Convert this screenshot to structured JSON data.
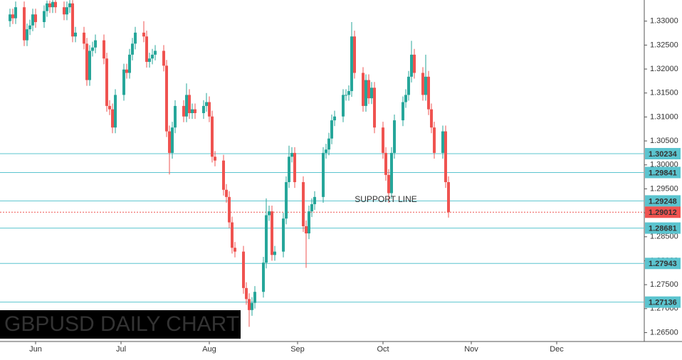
{
  "chart_data": {
    "type": "candlestick",
    "title": "GBPUSD DAILY CHART",
    "annotation": "SUPPORT LINE",
    "x": [
      -9,
      -8,
      -7,
      -4,
      -3,
      -2,
      -1,
      0,
      3,
      4,
      5,
      6,
      7,
      10,
      11,
      12,
      13,
      14,
      17,
      18,
      19,
      20,
      21,
      24,
      25,
      26,
      27,
      28,
      31,
      32,
      33,
      34,
      35,
      38,
      39,
      40,
      41,
      42,
      45,
      46,
      47,
      48,
      49,
      52,
      53,
      54,
      55,
      56,
      59,
      60,
      61,
      62,
      63,
      66,
      67,
      68,
      69,
      70,
      73,
      74,
      75,
      76,
      77,
      80,
      81,
      82,
      83,
      84,
      87,
      88,
      89,
      90,
      91,
      94,
      95,
      96,
      97,
      98,
      101,
      102,
      103,
      104,
      105,
      108,
      109,
      110,
      111,
      112,
      115,
      116,
      117,
      118,
      119,
      122,
      123,
      124,
      125,
      126,
      129,
      130,
      131,
      132,
      133,
      136,
      137,
      138,
      139,
      140,
      143,
      144,
      145
    ],
    "open": [
      1.33,
      1.3314,
      1.3306,
      1.3329,
      1.326,
      1.3283,
      1.3291,
      1.3314,
      1.3298,
      1.3321,
      1.3337,
      1.3329,
      1.334,
      1.3329,
      1.3314,
      1.3329,
      1.3337,
      1.3268,
      1.3276,
      1.3253,
      1.3177,
      1.3238,
      1.3245,
      1.326,
      1.3222,
      1.3123,
      1.3116,
      1.3078,
      1.3146,
      1.3199,
      1.3192,
      1.323,
      1.3253,
      1.3276,
      1.3268,
      1.3215,
      1.3222,
      1.323,
      1.3238,
      1.3207,
      1.307,
      1.3025,
      1.3078,
      1.3123,
      1.3101,
      1.3146,
      1.3108,
      1.3116,
      1.3108,
      1.3123,
      1.3131,
      1.3101,
      1.3017,
      1.3009,
      1.2948,
      1.2933,
      1.288,
      1.2827,
      1.2819,
      1.2743,
      1.272,
      1.2697,
      1.2712,
      1.2735,
      1.2796,
      1.2895,
      1.2903,
      1.2812,
      1.2819,
      1.2888,
      1.2964,
      1.3017,
      1.3025,
      1.2964,
      1.2872,
      1.2857,
      1.2903,
      1.2918,
      1.2933,
      1.3025,
      1.3032,
      1.3055,
      1.3093,
      1.3101,
      1.3146,
      1.3146,
      1.3154,
      1.3268,
      1.3192,
      1.3123,
      1.3177,
      1.3139,
      1.3161,
      1.3078,
      1.3025,
      1.2979,
      1.2941,
      1.3025,
      1.3093,
      1.3131,
      1.3146,
      1.3184,
      1.323,
      1.3192,
      1.3146,
      1.3184,
      1.3116,
      1.3078,
      1.3025,
      1.307,
      1.2964
    ],
    "high": [
      1.3326,
      1.3326,
      1.3341,
      1.3341,
      1.3295,
      1.3303,
      1.3326,
      1.3326,
      1.3333,
      1.3343,
      1.3343,
      1.3344,
      1.3344,
      1.3341,
      1.3341,
      1.3344,
      1.3344,
      1.3288,
      1.3288,
      1.3265,
      1.325,
      1.3257,
      1.3272,
      1.3272,
      1.3234,
      1.3135,
      1.3128,
      1.3158,
      1.3211,
      1.3211,
      1.3242,
      1.3265,
      1.3288,
      1.33,
      1.328,
      1.3234,
      1.3242,
      1.325,
      1.325,
      1.3219,
      1.3082,
      1.309,
      1.3135,
      1.3135,
      1.317,
      1.3158,
      1.3128,
      1.3128,
      1.3135,
      1.315,
      1.3143,
      1.3113,
      1.3029,
      1.3021,
      1.296,
      1.2945,
      1.2892,
      1.2839,
      1.2831,
      1.2755,
      1.2732,
      1.2724,
      1.2747,
      1.2808,
      1.293,
      1.2915,
      1.2915,
      1.2831,
      1.29,
      1.2976,
      1.304,
      1.3037,
      1.3037,
      1.2976,
      1.2884,
      1.2915,
      1.293,
      1.2945,
      1.3037,
      1.3044,
      1.3067,
      1.3105,
      1.3113,
      1.3158,
      1.3158,
      1.3166,
      1.3298,
      1.328,
      1.3204,
      1.3189,
      1.3189,
      1.3173,
      1.3173,
      1.309,
      1.3037,
      1.2991,
      1.3037,
      1.3105,
      1.3143,
      1.3158,
      1.3196,
      1.3259,
      1.3242,
      1.3204,
      1.323,
      1.3196,
      1.3128,
      1.309,
      1.3082,
      1.3082,
      1.2976
    ],
    "low": [
      1.3288,
      1.3294,
      1.3294,
      1.3248,
      1.3248,
      1.3271,
      1.3279,
      1.3286,
      1.3286,
      1.3309,
      1.3317,
      1.3317,
      1.3317,
      1.3302,
      1.3302,
      1.3317,
      1.3256,
      1.3256,
      1.3241,
      1.3165,
      1.3165,
      1.3226,
      1.3233,
      1.321,
      1.3111,
      1.3104,
      1.3066,
      1.3066,
      1.3134,
      1.318,
      1.318,
      1.3218,
      1.3241,
      1.3256,
      1.3203,
      1.3203,
      1.321,
      1.3218,
      1.3195,
      1.3058,
      1.298,
      1.3013,
      1.3066,
      1.3089,
      1.3089,
      1.3096,
      1.3096,
      1.3096,
      1.3096,
      1.3111,
      1.3089,
      1.3005,
      1.2997,
      1.2936,
      1.2921,
      1.2868,
      1.2815,
      1.2807,
      1.2731,
      1.2708,
      1.2662,
      1.2685,
      1.27,
      1.2723,
      1.2784,
      1.2883,
      1.28,
      1.28,
      1.2807,
      1.2876,
      1.2952,
      1.3005,
      1.2952,
      1.286,
      1.2785,
      1.2845,
      1.2891,
      1.2906,
      1.2921,
      1.3013,
      1.302,
      1.3043,
      1.3081,
      1.3089,
      1.3134,
      1.3134,
      1.3142,
      1.318,
      1.3111,
      1.3111,
      1.3127,
      1.3127,
      1.3066,
      1.3013,
      1.2967,
      1.2921,
      1.2929,
      1.3013,
      1.3081,
      1.3119,
      1.3134,
      1.3172,
      1.318,
      1.3134,
      1.3134,
      1.3104,
      1.3066,
      1.3013,
      1.3013,
      1.2952,
      1.289
    ],
    "close": [
      1.3314,
      1.3306,
      1.3329,
      1.326,
      1.3283,
      1.3291,
      1.3314,
      1.3298,
      1.3321,
      1.3337,
      1.3329,
      1.334,
      1.3329,
      1.3314,
      1.3329,
      1.3337,
      1.3268,
      1.3276,
      1.3253,
      1.3177,
      1.3238,
      1.3245,
      1.326,
      1.3222,
      1.3123,
      1.3116,
      1.3078,
      1.3146,
      1.3199,
      1.3192,
      1.323,
      1.3253,
      1.3276,
      1.3268,
      1.3215,
      1.3222,
      1.323,
      1.3238,
      1.3207,
      1.307,
      1.3025,
      1.3078,
      1.3123,
      1.3101,
      1.3146,
      1.3108,
      1.3116,
      1.3108,
      1.3123,
      1.3131,
      1.3101,
      1.3017,
      1.3009,
      1.2948,
      1.2933,
      1.288,
      1.2827,
      1.2819,
      1.2743,
      1.272,
      1.2697,
      1.2712,
      1.2735,
      1.2796,
      1.2895,
      1.2903,
      1.2812,
      1.2819,
      1.2888,
      1.2964,
      1.3017,
      1.3025,
      1.2964,
      1.2872,
      1.2857,
      1.2903,
      1.2918,
      1.2933,
      1.3025,
      1.3032,
      1.3055,
      1.3093,
      1.3101,
      1.3146,
      1.3146,
      1.3154,
      1.3268,
      1.3192,
      1.3123,
      1.3177,
      1.3139,
      1.3161,
      1.3078,
      1.3025,
      1.2979,
      1.2941,
      1.3025,
      1.3093,
      1.3131,
      1.3146,
      1.3184,
      1.323,
      1.3192,
      1.3146,
      1.3184,
      1.3116,
      1.3078,
      1.3025,
      1.307,
      1.2964,
      1.29012
    ],
    "up_color": "#26a69a",
    "down_color": "#ef5350",
    "ylim": [
      1.26314,
      1.33441
    ],
    "yticks": [
      {
        "value": 1.265,
        "label": "1.26500"
      },
      {
        "value": 1.27,
        "label": "1.27000"
      },
      {
        "value": 1.275,
        "label": "1.27500"
      },
      {
        "value": 1.28,
        "label": "1.28000"
      },
      {
        "value": 1.285,
        "label": "1.28500"
      },
      {
        "value": 1.29,
        "label": "1.29000"
      },
      {
        "value": 1.295,
        "label": "1.29500"
      },
      {
        "value": 1.3,
        "label": "1.30000"
      },
      {
        "value": 1.305,
        "label": "1.30500"
      },
      {
        "value": 1.31,
        "label": "1.31000"
      },
      {
        "value": 1.315,
        "label": "1.31500"
      },
      {
        "value": 1.32,
        "label": "1.32000"
      },
      {
        "value": 1.325,
        "label": "1.32500"
      },
      {
        "value": 1.33,
        "label": "1.33000"
      }
    ],
    "xlim": [
      -12.5,
      213.75
    ],
    "xticks": [
      {
        "value": 0,
        "label": "Jun"
      },
      {
        "value": 30,
        "label": "Jul"
      },
      {
        "value": 61,
        "label": "Aug"
      },
      {
        "value": 92,
        "label": "Sep"
      },
      {
        "value": 122,
        "label": "Oct"
      },
      {
        "value": 153,
        "label": "Nov"
      },
      {
        "value": 183,
        "label": "Dec"
      }
    ],
    "levels": [
      1.30234,
      1.29841,
      1.29248,
      1.28681,
      1.27943,
      1.27136
    ],
    "level_color": "#5bc4cf",
    "current_price": 1.29012,
    "current_color": "#ef5350"
  }
}
